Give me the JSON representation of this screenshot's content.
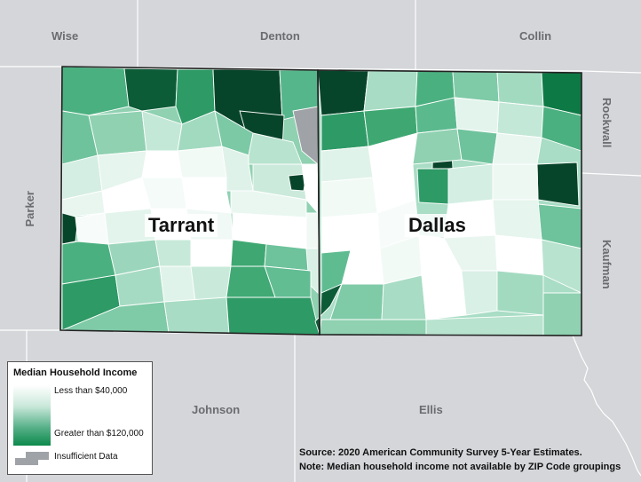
{
  "map": {
    "colors": {
      "background": "#d4d6d9",
      "low": "#ffffff",
      "high": "#0c8a4c",
      "highest": "#07452a",
      "insufficient": "#9fa2a7"
    },
    "counties": {
      "wise": "Wise",
      "denton": "Denton",
      "collin": "Collin",
      "rockwall": "Rockwall",
      "parker": "Parker",
      "kaufman": "Kaufman",
      "johnson": "Johnson",
      "ellis": "Ellis"
    },
    "focus_counties": {
      "tarrant": "Tarrant",
      "dallas": "Dallas"
    }
  },
  "legend": {
    "title": "Median Household Income",
    "low_label": "Less than $40,000",
    "high_label": "Greater than $120,000",
    "insufficient_label": "Insufficient Data"
  },
  "source": {
    "line1": "Source: 2020 American Community Survey 5-Year Estimates.",
    "line2": "Note: Median household income not available by ZIP Code groupings"
  }
}
